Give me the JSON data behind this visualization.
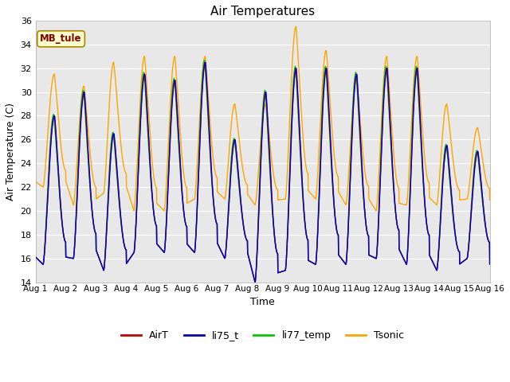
{
  "title": "Air Temperatures",
  "xlabel": "Time",
  "ylabel": "Air Temperature (C)",
  "ylim": [
    14,
    36
  ],
  "yticks": [
    14,
    16,
    18,
    20,
    22,
    24,
    26,
    28,
    30,
    32,
    34,
    36
  ],
  "xtick_labels": [
    "Aug 1",
    "Aug 2",
    "Aug 3",
    "Aug 4",
    "Aug 5",
    "Aug 6",
    "Aug 7",
    "Aug 8",
    "Aug 9",
    "Aug 10",
    "Aug 11",
    "Aug 12",
    "Aug 13",
    "Aug 14",
    "Aug 15",
    "Aug 16"
  ],
  "series_colors": {
    "AirT": "#cc0000",
    "li75_t": "#0000cc",
    "li77_temp": "#00cc00",
    "Tsonic": "#ffa500"
  },
  "legend_label": "MB_tule",
  "legend_box_color": "#ffffcc",
  "legend_text_color": "#800000",
  "fig_bg_color": "#ffffff",
  "plot_bg_color": "#e8e8e8",
  "grid_color": "#ffffff",
  "linewidth": 1.0
}
